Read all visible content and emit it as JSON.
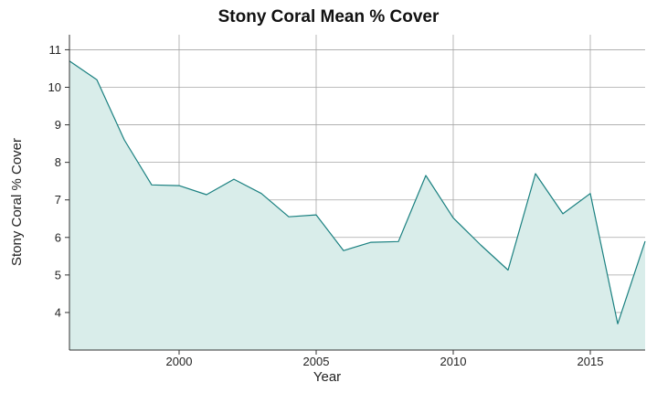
{
  "chart_data": {
    "type": "area",
    "title": "Stony Coral Mean % Cover",
    "xlabel": "Year",
    "ylabel": "Stony Coral % Cover",
    "xlim": [
      1996,
      2017
    ],
    "ylim": [
      3.0,
      11.4
    ],
    "x_ticks": [
      2000,
      2005,
      2010,
      2015
    ],
    "y_ticks": [
      4,
      5,
      6,
      7,
      8,
      9,
      10,
      11
    ],
    "grid": true,
    "legend": "none",
    "x": [
      1996,
      1997,
      1998,
      1999,
      2000,
      2001,
      2002,
      2003,
      2004,
      2005,
      2006,
      2007,
      2008,
      2009,
      2010,
      2011,
      2012,
      2013,
      2014,
      2015,
      2016,
      2017
    ],
    "series": [
      {
        "values": [
          10.7,
          10.2,
          8.6,
          7.4,
          7.38,
          7.14,
          7.55,
          7.17,
          6.55,
          6.6,
          5.65,
          5.87,
          5.89,
          7.65,
          6.52,
          5.8,
          5.13,
          7.7,
          6.63,
          7.17,
          3.7,
          5.9
        ]
      }
    ],
    "colors": {
      "line": "#1a8080",
      "fill": "#d9edea",
      "grid": "#a6a6a6",
      "axis": "#333333"
    }
  }
}
